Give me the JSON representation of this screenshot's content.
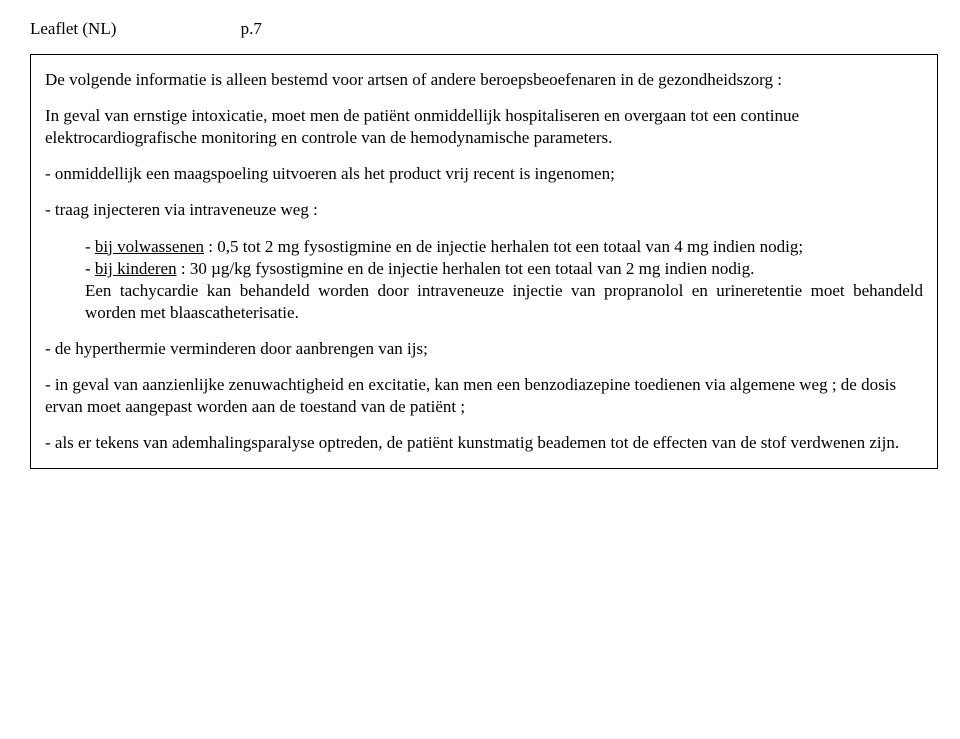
{
  "header": {
    "left": "Leaflet (NL)",
    "right": "p.7"
  },
  "box": {
    "intro": "De volgende informatie is alleen bestemd voor artsen of andere beroepsbeoefenaren in de gezondheidszorg :",
    "case": "In geval van ernstige intoxicatie, moet men de patiënt onmiddellijk hospitaliseren en overgaan tot een continue elektrocardiografische monitoring en controle van de hemodynamische parameters.",
    "bullet1": "- onmiddellijk een maagspoeling uitvoeren als het product vrij recent is ingenomen;",
    "bullet2": "- traag injecteren via intraveneuze weg :",
    "sub1_pre": "- ",
    "sub1_u": "bij volwassenen",
    "sub1_post": " : 0,5 tot 2 mg fysostigmine en de injectie herhalen tot een totaal van 4 mg indien nodig;",
    "sub2_pre": "- ",
    "sub2_u": "bij kinderen",
    "sub2_post": " : 30 µg/kg fysostigmine en de injectie herhalen tot een totaal van 2 mg indien nodig.",
    "sub_tail": "Een tachycardie kan behandeld worden door intraveneuze injectie van propranolol en urineretentie moet behandeld worden met blaascatheterisatie.",
    "bullet3": "- de hyperthermie verminderen door aanbrengen van ijs;",
    "bullet4": "- in geval van aanzienlijke zenuwachtigheid en excitatie, kan men een benzodiazepine toedienen via algemene weg ; de dosis ervan moet aangepast worden aan de toestand van de patiënt ;",
    "bullet5": "- als er tekens van ademhalingsparalyse optreden, de patiënt kunstmatig beademen tot de effecten van de stof verdwenen zijn."
  }
}
